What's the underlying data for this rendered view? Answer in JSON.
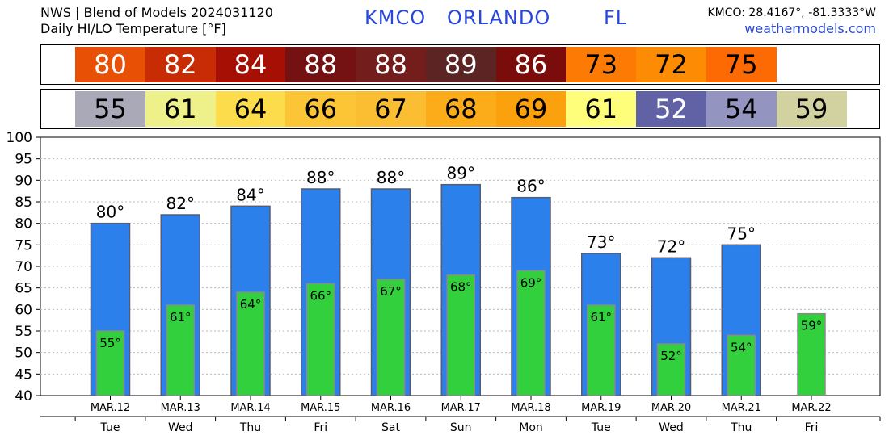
{
  "header": {
    "line1": "NWS | Blend of Models 2024031120",
    "line2": "Daily HI/LO Temperature [°F]",
    "station_id": "KMCO",
    "station_city": "ORLANDO",
    "station_state": "FL",
    "coords": "KMCO: 28.4167°, -81.3333°W",
    "site": "weathermodels.com"
  },
  "high_strip": [
    {
      "value": "80",
      "bg": "#e85006",
      "fg": "#ffffff"
    },
    {
      "value": "82",
      "bg": "#c72c04",
      "fg": "#ffffff"
    },
    {
      "value": "84",
      "bg": "#a50f04",
      "fg": "#ffffff"
    },
    {
      "value": "88",
      "bg": "#731113",
      "fg": "#ffffff"
    },
    {
      "value": "88",
      "bg": "#731e1c",
      "fg": "#ffffff"
    },
    {
      "value": "89",
      "bg": "#5c2422",
      "fg": "#ffffff"
    },
    {
      "value": "86",
      "bg": "#7a0c0c",
      "fg": "#ffffff"
    },
    {
      "value": "73",
      "bg": "#fd7a04",
      "fg": "#000000"
    },
    {
      "value": "72",
      "bg": "#fd8c04",
      "fg": "#000000"
    },
    {
      "value": "75",
      "bg": "#fd6a04",
      "fg": "#000000"
    }
  ],
  "low_strip": [
    {
      "value": "55",
      "bg": "#a9a9b7",
      "fg": "#000000"
    },
    {
      "value": "61",
      "bg": "#eef08a",
      "fg": "#000000"
    },
    {
      "value": "64",
      "bg": "#fcdc4a",
      "fg": "#000000"
    },
    {
      "value": "66",
      "bg": "#fbc535",
      "fg": "#000000"
    },
    {
      "value": "67",
      "bg": "#fbbe32",
      "fg": "#000000"
    },
    {
      "value": "68",
      "bg": "#fcac18",
      "fg": "#000000"
    },
    {
      "value": "69",
      "bg": "#fca10e",
      "fg": "#000000"
    },
    {
      "value": "61",
      "bg": "#fefe7a",
      "fg": "#000000"
    },
    {
      "value": "52",
      "bg": "#6161a6",
      "fg": "#ffffff"
    },
    {
      "value": "54",
      "bg": "#9494c0",
      "fg": "#000000"
    },
    {
      "value": "59",
      "bg": "#d2d2a0",
      "fg": "#000000"
    }
  ],
  "chart_data": {
    "type": "bar",
    "categories": [
      "MAR.12",
      "MAR.13",
      "MAR.14",
      "MAR.15",
      "MAR.16",
      "MAR.17",
      "MAR.18",
      "MAR.19",
      "MAR.20",
      "MAR.21",
      "MAR.22"
    ],
    "days": [
      "Tue",
      "Wed",
      "Thu",
      "Fri",
      "Sat",
      "Sun",
      "Mon",
      "Tue",
      "Wed",
      "Thu",
      "Fri"
    ],
    "series": [
      {
        "values": [
          80,
          82,
          84,
          88,
          88,
          89,
          86,
          73,
          72,
          75,
          null
        ],
        "color": "#2c80ec",
        "labels": [
          "80°",
          "82°",
          "84°",
          "88°",
          "88°",
          "89°",
          "86°",
          "73°",
          "72°",
          "75°",
          ""
        ]
      },
      {
        "values": [
          55,
          61,
          64,
          66,
          67,
          68,
          69,
          61,
          52,
          54,
          59
        ],
        "color": "#33d03d",
        "labels": [
          "55°",
          "61°",
          "64°",
          "66°",
          "67°",
          "68°",
          "69°",
          "61°",
          "52°",
          "54°",
          "59°"
        ]
      }
    ],
    "ylim": [
      40,
      100
    ],
    "yticks": [
      "40",
      "45",
      "50",
      "55",
      "60",
      "65",
      "70",
      "75",
      "80",
      "85",
      "90",
      "95",
      "100"
    ],
    "grid": true
  }
}
